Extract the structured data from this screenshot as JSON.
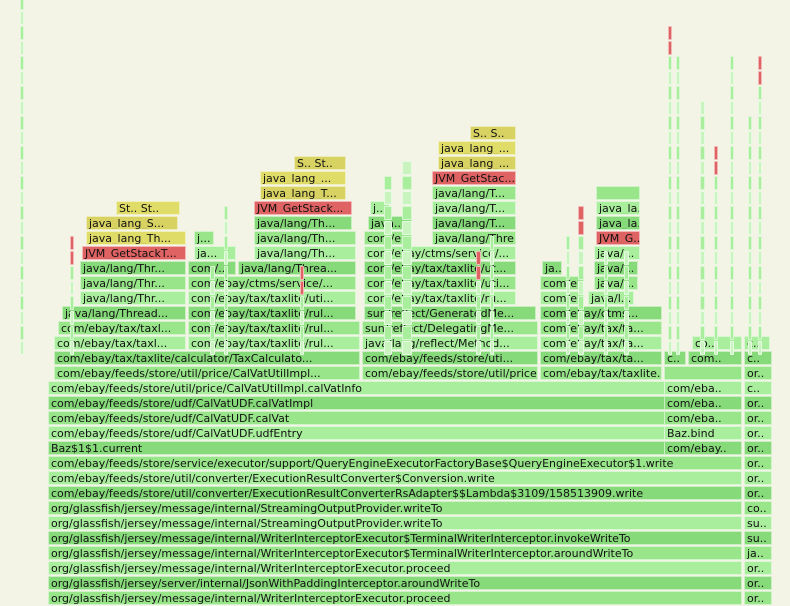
{
  "rows": [
    [
      [
        48,
        694,
        "com/ebay/feeds/store/util/price/CalVatUtilImpl.calVatInfo"
      ],
      [
        664,
        742,
        "com/eba.."
      ],
      [
        744,
        772,
        "c.."
      ]
    ],
    [
      [
        48,
        694,
        "com/ebay/feeds/store/udf/CalVatUDF.calVatImpl"
      ],
      [
        664,
        742,
        "com/eba.."
      ],
      [
        744,
        772,
        "or.."
      ]
    ],
    [
      [
        48,
        694,
        "com/ebay/feeds/store/udf/CalVatUDF.calVat"
      ],
      [
        664,
        742,
        "com/eba.."
      ],
      [
        744,
        772,
        "or.."
      ]
    ],
    [
      [
        48,
        694,
        "com/ebay/feeds/store/udf/CalVatUDF.udfEntry"
      ],
      [
        664,
        742,
        "Baz.bind"
      ],
      [
        744,
        772,
        "or.."
      ]
    ],
    [
      [
        48,
        694,
        "Baz$1$1.current"
      ],
      [
        664,
        742,
        "com/ebay.."
      ],
      [
        744,
        772,
        "or.."
      ]
    ],
    [
      [
        48,
        742,
        "com/ebay/feeds/store/service/executor/support/QueryEngineExecutorFactoryBase$QueryEngineExecutor$1.write"
      ],
      [
        744,
        772,
        "or.."
      ]
    ],
    [
      [
        48,
        742,
        "com/ebay/feeds/store/util/converter/ExecutionResultConverter$Conversion.write"
      ],
      [
        744,
        772,
        "or.."
      ]
    ],
    [
      [
        48,
        742,
        "com/ebay/feeds/store/util/converter/ExecutionResultConverterRsAdapter$$Lambda$3109/158513909.write"
      ],
      [
        744,
        772,
        "or.."
      ]
    ],
    [
      [
        48,
        742,
        "org/glassfish/jersey/message/internal/StreamingOutputProvider.writeTo"
      ],
      [
        744,
        772,
        "co.."
      ]
    ],
    [
      [
        48,
        742,
        "org/glassfish/jersey/message/internal/StreamingOutputProvider.writeTo"
      ],
      [
        744,
        772,
        "su.."
      ]
    ],
    [
      [
        48,
        742,
        "org/glassfish/jersey/message/internal/WriterInterceptorExecutor$TerminalWriterInterceptor.invokeWriteTo"
      ],
      [
        744,
        772,
        "su.."
      ]
    ],
    [
      [
        48,
        742,
        "org/glassfish/jersey/message/internal/WriterInterceptorExecutor$TerminalWriterInterceptor.aroundWriteTo"
      ],
      [
        744,
        772,
        "ja.."
      ]
    ],
    [
      [
        48,
        742,
        "org/glassfish/jersey/message/internal/WriterInterceptorExecutor.proceed"
      ],
      [
        744,
        772,
        "or.."
      ]
    ],
    [
      [
        48,
        742,
        "org/glassfish/jersey/server/internal/JsonWithPaddingInterceptor.aroundWriteTo"
      ],
      [
        744,
        772,
        "or.."
      ]
    ],
    [
      [
        48,
        742,
        "org/glassfish/jersey/message/internal/WriterInterceptorExecutor.proceed"
      ],
      [
        744,
        772,
        "or.."
      ]
    ]
  ],
  "upper": [
    [
      [
        54,
        360,
        "com/ebay/feeds/store/util/price/CalVatUtilImpl..."
      ],
      [
        362,
        538,
        "com/ebay/feeds/store/util/price/Ca..."
      ],
      [
        540,
        662,
        "com/ebay/tax/taxlite..."
      ],
      [
        664,
        742,
        ""
      ],
      [
        744,
        772,
        "or.."
      ]
    ],
    [
      [
        54,
        360,
        "com/ebay/tax/taxlite/calculator/TaxCalculato..."
      ],
      [
        362,
        538,
        "com/ebay/feeds/store/uti..."
      ],
      [
        540,
        662,
        "com/ebay/tax/ta..."
      ],
      [
        664,
        686,
        "c.."
      ],
      [
        688,
        742,
        "com.."
      ],
      [
        744,
        772,
        "c.."
      ]
    ],
    [
      [
        54,
        186,
        "com/ebay/tax/taxl..."
      ],
      [
        188,
        360,
        "com/ebay/tax/taxlite/rul..."
      ],
      [
        362,
        538,
        "java/lang/reflect/Method..."
      ],
      [
        540,
        662,
        "com/ebay/tax/ta..."
      ],
      [
        692,
        742,
        "co.."
      ],
      [
        744,
        770,
        "c.."
      ]
    ],
    [
      [
        58,
        186,
        "com/ebay/tax/taxl..."
      ],
      [
        188,
        360,
        "com/ebay/tax/taxlite/rul..."
      ],
      [
        362,
        538,
        "sun/reflect/DelegatingMe..."
      ],
      [
        540,
        662,
        "com/ebay/tax/ta..."
      ]
    ],
    [
      [
        62,
        186,
        "java/lang/Thread..."
      ],
      [
        188,
        356,
        "com/ebay/tax/taxlite/rul..."
      ],
      [
        364,
        536,
        "sun/reflect/GeneratedMe..."
      ],
      [
        540,
        662,
        "com/ebay/ctms..."
      ]
    ],
    [
      [
        80,
        186,
        "java/lang/Thr..."
      ],
      [
        188,
        356,
        "com/ebay/tax/taxlite/uti..."
      ],
      [
        364,
        516,
        "com/ebay/tax/taxlite/ru..."
      ],
      [
        540,
        584,
        "com/e..."
      ],
      [
        588,
        634,
        "java/l..."
      ]
    ],
    [
      [
        80,
        186,
        "java/lang/Thr..."
      ],
      [
        188,
        356,
        "com/ebay/ctms/service/..."
      ],
      [
        364,
        516,
        "com/ebay/tax/taxlite/uti..."
      ],
      [
        540,
        584,
        "com/e..."
      ],
      [
        594,
        638,
        "java/..."
      ]
    ],
    [
      [
        80,
        186,
        "java/lang/Thr..."
      ],
      [
        188,
        236,
        "com/..."
      ],
      [
        238,
        356,
        "java/lang/Threa..."
      ],
      [
        364,
        516,
        "com/ebay/tax/taxlite/ut..."
      ],
      [
        542,
        562,
        "ja..."
      ],
      [
        594,
        638,
        "java/..."
      ]
    ],
    [
      [
        82,
        186,
        "JVM_GetStackT..."
      ],
      [
        194,
        236,
        "ja..."
      ],
      [
        254,
        356,
        "java/lang/Th..."
      ],
      [
        364,
        516,
        "com/ebay/ctms/service/..."
      ],
      [
        594,
        640,
        "java/..."
      ]
    ],
    [
      [
        86,
        186,
        "java_lang_Th..."
      ],
      [
        194,
        214,
        "j..."
      ],
      [
        254,
        356,
        "java/lang/Th..."
      ],
      [
        364,
        412,
        "com/e..."
      ],
      [
        432,
        516,
        "java/lang/Thre..."
      ],
      [
        596,
        640,
        "JVM_G..."
      ]
    ],
    [
      [
        86,
        178,
        "java_lang_S..."
      ],
      [
        254,
        352,
        "java/lang/Th..."
      ],
      [
        368,
        412,
        "java..."
      ],
      [
        432,
        516,
        "java/lang/T..."
      ],
      [
        596,
        640,
        "java_la..."
      ]
    ],
    [
      [
        116,
        180,
        "St.. St.."
      ],
      [
        254,
        352,
        "JVM_GetStack..."
      ],
      [
        370,
        390,
        "j..."
      ],
      [
        432,
        516,
        "java/lang/T..."
      ],
      [
        596,
        640,
        "java_la..."
      ]
    ],
    [
      [
        260,
        346,
        "java_lang_T..."
      ],
      [
        432,
        516,
        "java/lang/T..."
      ],
      [
        596,
        640,
        ""
      ]
    ],
    [
      [
        260,
        346,
        "java_lang_..."
      ],
      [
        432,
        516,
        "JVM_GetStac..."
      ]
    ],
    [
      [
        294,
        346,
        "S.. St.."
      ],
      [
        438,
        516,
        "java_lang_..."
      ]
    ],
    [
      [
        438,
        516,
        "java_lang_..."
      ]
    ],
    [
      [
        470,
        516,
        "S.. S.."
      ]
    ]
  ]
}
